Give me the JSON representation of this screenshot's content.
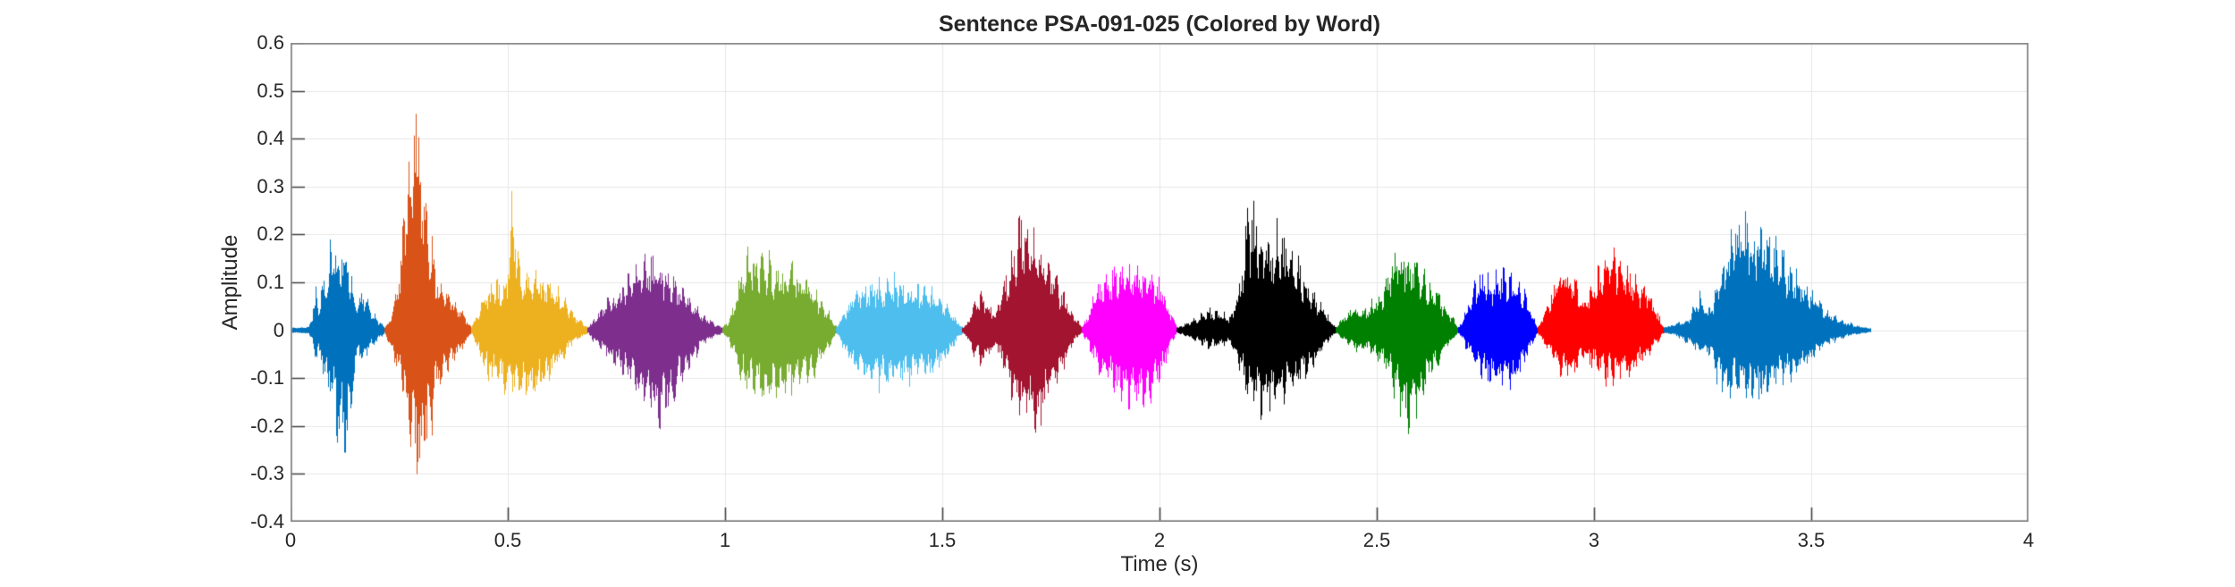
{
  "chart_data": {
    "type": "line",
    "subtype": "audio-waveform-colored-by-word",
    "title": "Sentence PSA-091-025 (Colored by Word)",
    "grid": true,
    "x_axis": {
      "label": "Time (s)",
      "range": [
        0,
        4
      ],
      "ticks": [
        {
          "value": 0,
          "label": "0"
        },
        {
          "value": 0.5,
          "label": "0.5"
        },
        {
          "value": 1,
          "label": "1"
        },
        {
          "value": 1.5,
          "label": "1.5"
        },
        {
          "value": 2,
          "label": "2"
        },
        {
          "value": 2.5,
          "label": "2.5"
        },
        {
          "value": 3,
          "label": "3"
        },
        {
          "value": 3.5,
          "label": "3.5"
        },
        {
          "value": 4,
          "label": "4"
        }
      ]
    },
    "y_axis": {
      "label": "Amplitude",
      "range": [
        -0.4,
        0.6
      ],
      "ticks": [
        {
          "value": 0.6,
          "label": "0.6"
        },
        {
          "value": 0.5,
          "label": "0.5"
        },
        {
          "value": 0.4,
          "label": "0.4"
        },
        {
          "value": 0.3,
          "label": "0.3"
        },
        {
          "value": 0.2,
          "label": "0.2"
        },
        {
          "value": 0.1,
          "label": "0.1"
        },
        {
          "value": 0,
          "label": "0"
        },
        {
          "value": -0.1,
          "label": "-0.1"
        },
        {
          "value": -0.2,
          "label": "-0.2"
        },
        {
          "value": -0.3,
          "label": "-0.3"
        },
        {
          "value": -0.4,
          "label": "-0.4"
        }
      ]
    },
    "colors": {
      "background": "#ffffff",
      "axis_box": "#8a8a8a",
      "tick": "#404040",
      "grid_line": "#e8e8e8",
      "text": "#262626"
    },
    "segments": [
      {
        "word_index": 1,
        "color": "#0072BD",
        "t_start": 0.004,
        "t_end": 0.216,
        "peak": 0.23,
        "trough": -0.28,
        "envelope": [
          [
            0,
            0.004,
            0.004
          ],
          [
            0.17,
            0.006,
            0.006
          ],
          [
            0.21,
            0.03,
            0.025
          ],
          [
            0.25,
            0.095,
            0.07
          ],
          [
            0.29,
            0.07,
            0.06
          ],
          [
            0.34,
            0.13,
            0.11
          ],
          [
            0.42,
            0.21,
            0.17
          ],
          [
            0.47,
            0.23,
            0.21
          ],
          [
            0.53,
            0.2,
            0.26
          ],
          [
            0.6,
            0.17,
            0.28
          ],
          [
            0.66,
            0.1,
            0.13
          ],
          [
            0.71,
            0.055,
            0.05
          ],
          [
            0.76,
            0.1,
            0.08
          ],
          [
            0.82,
            0.065,
            0.055
          ],
          [
            0.89,
            0.035,
            0.03
          ],
          [
            1,
            0.005,
            0.005
          ]
        ]
      },
      {
        "word_index": 2,
        "color": "#D95319",
        "t_start": 0.216,
        "t_end": 0.415,
        "peak": 0.575,
        "trough": -0.35,
        "envelope": [
          [
            0,
            0.005,
            0.005
          ],
          [
            0.07,
            0.03,
            0.04
          ],
          [
            0.12,
            0.08,
            0.09
          ],
          [
            0.18,
            0.16,
            0.12
          ],
          [
            0.24,
            0.3,
            0.18
          ],
          [
            0.3,
            0.5,
            0.26
          ],
          [
            0.34,
            0.575,
            0.3
          ],
          [
            0.38,
            0.5,
            0.34
          ],
          [
            0.43,
            0.4,
            0.35
          ],
          [
            0.49,
            0.28,
            0.27
          ],
          [
            0.57,
            0.17,
            0.17
          ],
          [
            0.65,
            0.11,
            0.12
          ],
          [
            0.74,
            0.09,
            0.095
          ],
          [
            0.83,
            0.06,
            0.065
          ],
          [
            0.92,
            0.035,
            0.035
          ],
          [
            1,
            0.006,
            0.006
          ]
        ]
      },
      {
        "word_index": 3,
        "color": "#EDB120",
        "t_start": 0.415,
        "t_end": 0.684,
        "peak": 0.29,
        "trough": -0.17,
        "envelope": [
          [
            0,
            0.006,
            0.006
          ],
          [
            0.06,
            0.04,
            0.05
          ],
          [
            0.12,
            0.09,
            0.1
          ],
          [
            0.2,
            0.115,
            0.13
          ],
          [
            0.3,
            0.12,
            0.14
          ],
          [
            0.35,
            0.29,
            0.15
          ],
          [
            0.39,
            0.21,
            0.16
          ],
          [
            0.44,
            0.13,
            0.17
          ],
          [
            0.54,
            0.125,
            0.15
          ],
          [
            0.64,
            0.115,
            0.12
          ],
          [
            0.74,
            0.1,
            0.09
          ],
          [
            0.84,
            0.05,
            0.04
          ],
          [
            0.92,
            0.028,
            0.02
          ],
          [
            1,
            0.005,
            0.005
          ]
        ]
      },
      {
        "word_index": 4,
        "color": "#7E2F8E",
        "t_start": 0.684,
        "t_end": 0.994,
        "peak": 0.17,
        "trough": -0.21,
        "envelope": [
          [
            0,
            0.005,
            0.005
          ],
          [
            0.05,
            0.03,
            0.03
          ],
          [
            0.12,
            0.06,
            0.05
          ],
          [
            0.24,
            0.1,
            0.09
          ],
          [
            0.34,
            0.15,
            0.13
          ],
          [
            0.44,
            0.17,
            0.18
          ],
          [
            0.54,
            0.155,
            0.21
          ],
          [
            0.64,
            0.12,
            0.15
          ],
          [
            0.74,
            0.08,
            0.09
          ],
          [
            0.84,
            0.04,
            0.04
          ],
          [
            0.93,
            0.015,
            0.015
          ],
          [
            1,
            0.005,
            0.005
          ]
        ]
      },
      {
        "word_index": 5,
        "color": "#77AC30",
        "t_start": 0.994,
        "t_end": 1.256,
        "peak": 0.2,
        "trough": -0.155,
        "envelope": [
          [
            0,
            0.005,
            0.005
          ],
          [
            0.05,
            0.02,
            0.02
          ],
          [
            0.1,
            0.06,
            0.06
          ],
          [
            0.17,
            0.14,
            0.12
          ],
          [
            0.24,
            0.2,
            0.14
          ],
          [
            0.32,
            0.16,
            0.155
          ],
          [
            0.41,
            0.17,
            0.15
          ],
          [
            0.51,
            0.14,
            0.145
          ],
          [
            0.61,
            0.15,
            0.13
          ],
          [
            0.71,
            0.13,
            0.12
          ],
          [
            0.81,
            0.1,
            0.1
          ],
          [
            0.91,
            0.05,
            0.05
          ],
          [
            1,
            0.006,
            0.006
          ]
        ]
      },
      {
        "word_index": 6,
        "color": "#4DBEEE",
        "t_start": 1.256,
        "t_end": 1.546,
        "peak": 0.115,
        "trough": -0.125,
        "envelope": [
          [
            0,
            0.006,
            0.006
          ],
          [
            0.07,
            0.045,
            0.05
          ],
          [
            0.14,
            0.095,
            0.1
          ],
          [
            0.24,
            0.105,
            0.11
          ],
          [
            0.34,
            0.115,
            0.12
          ],
          [
            0.5,
            0.105,
            0.115
          ],
          [
            0.64,
            0.1,
            0.11
          ],
          [
            0.77,
            0.095,
            0.1
          ],
          [
            0.87,
            0.06,
            0.065
          ],
          [
            0.95,
            0.025,
            0.025
          ],
          [
            1,
            0.005,
            0.005
          ]
        ]
      },
      {
        "word_index": 7,
        "color": "#A2142F",
        "t_start": 1.546,
        "t_end": 1.822,
        "peak": 0.265,
        "trough": -0.25,
        "envelope": [
          [
            0,
            0.005,
            0.005
          ],
          [
            0.05,
            0.02,
            0.02
          ],
          [
            0.1,
            0.085,
            0.07
          ],
          [
            0.16,
            0.09,
            0.08
          ],
          [
            0.22,
            0.05,
            0.05
          ],
          [
            0.28,
            0.04,
            0.04
          ],
          [
            0.35,
            0.12,
            0.1
          ],
          [
            0.42,
            0.2,
            0.16
          ],
          [
            0.5,
            0.265,
            0.21
          ],
          [
            0.58,
            0.24,
            0.25
          ],
          [
            0.66,
            0.2,
            0.22
          ],
          [
            0.75,
            0.14,
            0.14
          ],
          [
            0.85,
            0.085,
            0.08
          ],
          [
            0.94,
            0.03,
            0.02
          ],
          [
            1,
            0.005,
            0.005
          ]
        ]
      },
      {
        "word_index": 8,
        "color": "#FF00FF",
        "t_start": 1.822,
        "t_end": 2.04,
        "peak": 0.15,
        "trough": -0.185,
        "envelope": [
          [
            0,
            0.005,
            0.005
          ],
          [
            0.08,
            0.05,
            0.05
          ],
          [
            0.18,
            0.11,
            0.1
          ],
          [
            0.3,
            0.14,
            0.13
          ],
          [
            0.44,
            0.15,
            0.16
          ],
          [
            0.58,
            0.145,
            0.185
          ],
          [
            0.72,
            0.14,
            0.16
          ],
          [
            0.84,
            0.1,
            0.1
          ],
          [
            0.94,
            0.04,
            0.03
          ],
          [
            1,
            0.005,
            0.005
          ]
        ]
      },
      {
        "word_index": 9,
        "color": "#000000",
        "t_start": 2.04,
        "t_end": 2.405,
        "peak": 0.29,
        "trough": -0.19,
        "envelope": [
          [
            0,
            0.004,
            0.004
          ],
          [
            0.06,
            0.015,
            0.015
          ],
          [
            0.12,
            0.03,
            0.025
          ],
          [
            0.2,
            0.045,
            0.04
          ],
          [
            0.28,
            0.04,
            0.035
          ],
          [
            0.34,
            0.03,
            0.03
          ],
          [
            0.39,
            0.1,
            0.08
          ],
          [
            0.44,
            0.29,
            0.15
          ],
          [
            0.5,
            0.26,
            0.19
          ],
          [
            0.56,
            0.22,
            0.185
          ],
          [
            0.63,
            0.245,
            0.17
          ],
          [
            0.7,
            0.2,
            0.15
          ],
          [
            0.78,
            0.15,
            0.12
          ],
          [
            0.86,
            0.09,
            0.08
          ],
          [
            0.94,
            0.04,
            0.03
          ],
          [
            1,
            0.005,
            0.005
          ]
        ]
      },
      {
        "word_index": 10,
        "color": "#008000",
        "t_start": 2.405,
        "t_end": 2.688,
        "peak": 0.215,
        "trough": -0.245,
        "envelope": [
          [
            0,
            0.005,
            0.005
          ],
          [
            0.06,
            0.03,
            0.02
          ],
          [
            0.13,
            0.05,
            0.04
          ],
          [
            0.2,
            0.04,
            0.05
          ],
          [
            0.28,
            0.06,
            0.05
          ],
          [
            0.36,
            0.08,
            0.07
          ],
          [
            0.45,
            0.15,
            0.12
          ],
          [
            0.53,
            0.215,
            0.2
          ],
          [
            0.6,
            0.18,
            0.245
          ],
          [
            0.68,
            0.15,
            0.18
          ],
          [
            0.78,
            0.115,
            0.1
          ],
          [
            0.88,
            0.06,
            0.05
          ],
          [
            1,
            0.005,
            0.005
          ]
        ]
      },
      {
        "word_index": 11,
        "color": "#0000FF",
        "t_start": 2.688,
        "t_end": 2.87,
        "peak": 0.145,
        "trough": -0.14,
        "envelope": [
          [
            0,
            0.005,
            0.005
          ],
          [
            0.1,
            0.05,
            0.04
          ],
          [
            0.2,
            0.12,
            0.09
          ],
          [
            0.3,
            0.145,
            0.11
          ],
          [
            0.4,
            0.12,
            0.13
          ],
          [
            0.5,
            0.13,
            0.14
          ],
          [
            0.6,
            0.135,
            0.12
          ],
          [
            0.7,
            0.12,
            0.135
          ],
          [
            0.8,
            0.1,
            0.09
          ],
          [
            0.9,
            0.05,
            0.04
          ],
          [
            1,
            0.005,
            0.005
          ]
        ]
      },
      {
        "word_index": 12,
        "color": "#FF0000",
        "t_start": 2.87,
        "t_end": 3.16,
        "peak": 0.19,
        "trough": -0.12,
        "envelope": [
          [
            0,
            0.005,
            0.005
          ],
          [
            0.08,
            0.06,
            0.05
          ],
          [
            0.15,
            0.13,
            0.09
          ],
          [
            0.22,
            0.155,
            0.11
          ],
          [
            0.3,
            0.12,
            0.1
          ],
          [
            0.36,
            0.07,
            0.06
          ],
          [
            0.42,
            0.09,
            0.08
          ],
          [
            0.48,
            0.15,
            0.1
          ],
          [
            0.55,
            0.19,
            0.12
          ],
          [
            0.62,
            0.175,
            0.115
          ],
          [
            0.7,
            0.15,
            0.11
          ],
          [
            0.8,
            0.12,
            0.09
          ],
          [
            0.9,
            0.07,
            0.05
          ],
          [
            1,
            0.005,
            0.005
          ]
        ]
      },
      {
        "word_index": 13,
        "color": "#0072BD",
        "t_start": 3.16,
        "t_end": 3.635,
        "peak": 0.28,
        "trough": -0.155,
        "envelope": [
          [
            0,
            0.004,
            0.004
          ],
          [
            0.06,
            0.015,
            0.012
          ],
          [
            0.12,
            0.03,
            0.03
          ],
          [
            0.17,
            0.085,
            0.06
          ],
          [
            0.21,
            0.04,
            0.05
          ],
          [
            0.26,
            0.1,
            0.12
          ],
          [
            0.31,
            0.2,
            0.155
          ],
          [
            0.35,
            0.28,
            0.14
          ],
          [
            0.39,
            0.25,
            0.15
          ],
          [
            0.44,
            0.26,
            0.155
          ],
          [
            0.49,
            0.235,
            0.15
          ],
          [
            0.54,
            0.2,
            0.135
          ],
          [
            0.6,
            0.165,
            0.12
          ],
          [
            0.66,
            0.13,
            0.1
          ],
          [
            0.72,
            0.09,
            0.07
          ],
          [
            0.78,
            0.05,
            0.04
          ],
          [
            0.85,
            0.025,
            0.02
          ],
          [
            0.92,
            0.012,
            0.01
          ],
          [
            1,
            0.003,
            0.003
          ]
        ]
      }
    ]
  }
}
